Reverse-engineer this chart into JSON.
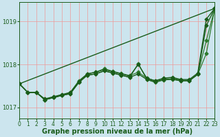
{
  "background_color": "#cce5ee",
  "grid_color": "#ee9999",
  "line_color_1": "#1a5c1a",
  "line_color_2": "#2d7a2d",
  "xlabel": "Graphe pression niveau de la mer (hPa)",
  "xlabel_fontsize": 7,
  "ylabel_ticks": [
    1017,
    1018,
    1019
  ],
  "xlim": [
    0,
    23
  ],
  "ylim": [
    1016.75,
    1019.45
  ],
  "x": [
    0,
    1,
    2,
    3,
    4,
    5,
    6,
    7,
    8,
    9,
    10,
    11,
    12,
    13,
    14,
    15,
    16,
    17,
    18,
    19,
    20,
    21,
    22,
    23
  ],
  "series": [
    {
      "y": [
        1017.55,
        1017.35,
        1017.35,
        1017.2,
        1017.25,
        1017.3,
        1017.35,
        1017.6,
        1017.78,
        1017.82,
        1017.88,
        1017.83,
        1017.78,
        1017.73,
        1018.0,
        1017.68,
        1017.62,
        1017.68,
        1017.7,
        1017.65,
        1017.65,
        1017.8,
        1019.05,
        1019.3
      ],
      "color": "#1a5c1a",
      "lw": 1.0,
      "marker": "D",
      "ms": 2.5,
      "zorder": 4
    },
    {
      "y": [
        1017.55,
        1017.35,
        1017.35,
        1017.18,
        1017.23,
        1017.28,
        1017.32,
        1017.58,
        1017.75,
        1017.78,
        1017.85,
        1017.8,
        1017.75,
        1017.7,
        1017.78,
        1017.65,
        1017.6,
        1017.65,
        1017.66,
        1017.62,
        1017.62,
        1017.77,
        1018.9,
        1019.3
      ],
      "color": "#1a5c1a",
      "lw": 1.0,
      "marker": "D",
      "ms": 2.5,
      "zorder": 3
    },
    {
      "y": [
        1017.55,
        1017.35,
        1017.35,
        1017.18,
        1017.23,
        1017.28,
        1017.35,
        1017.62,
        1017.78,
        1017.82,
        1017.9,
        1017.84,
        1017.79,
        1017.74,
        1017.82,
        1017.68,
        1017.62,
        1017.68,
        1017.69,
        1017.63,
        1017.63,
        1017.77,
        1018.55,
        1019.3
      ],
      "color": "#2d7a2d",
      "lw": 0.9,
      "marker": "D",
      "ms": 2.5,
      "zorder": 2
    },
    {
      "y": [
        1017.55,
        1017.35,
        1017.35,
        1017.18,
        1017.23,
        1017.28,
        1017.32,
        1017.58,
        1017.75,
        1017.78,
        1017.85,
        1017.8,
        1017.75,
        1017.7,
        1018.02,
        1017.65,
        1017.58,
        1017.64,
        1017.65,
        1017.62,
        1017.62,
        1017.77,
        1018.25,
        1019.3
      ],
      "color": "#2d7a2d",
      "lw": 0.9,
      "marker": "D",
      "ms": 2.5,
      "zorder": 2
    }
  ],
  "straight_line": {
    "x": [
      0,
      23
    ],
    "y": [
      1017.55,
      1019.3
    ],
    "color": "#1a5c1a",
    "lw": 1.0,
    "zorder": 5
  },
  "tick_fontsize": 5.5,
  "tick_color": "#1a5c1a"
}
